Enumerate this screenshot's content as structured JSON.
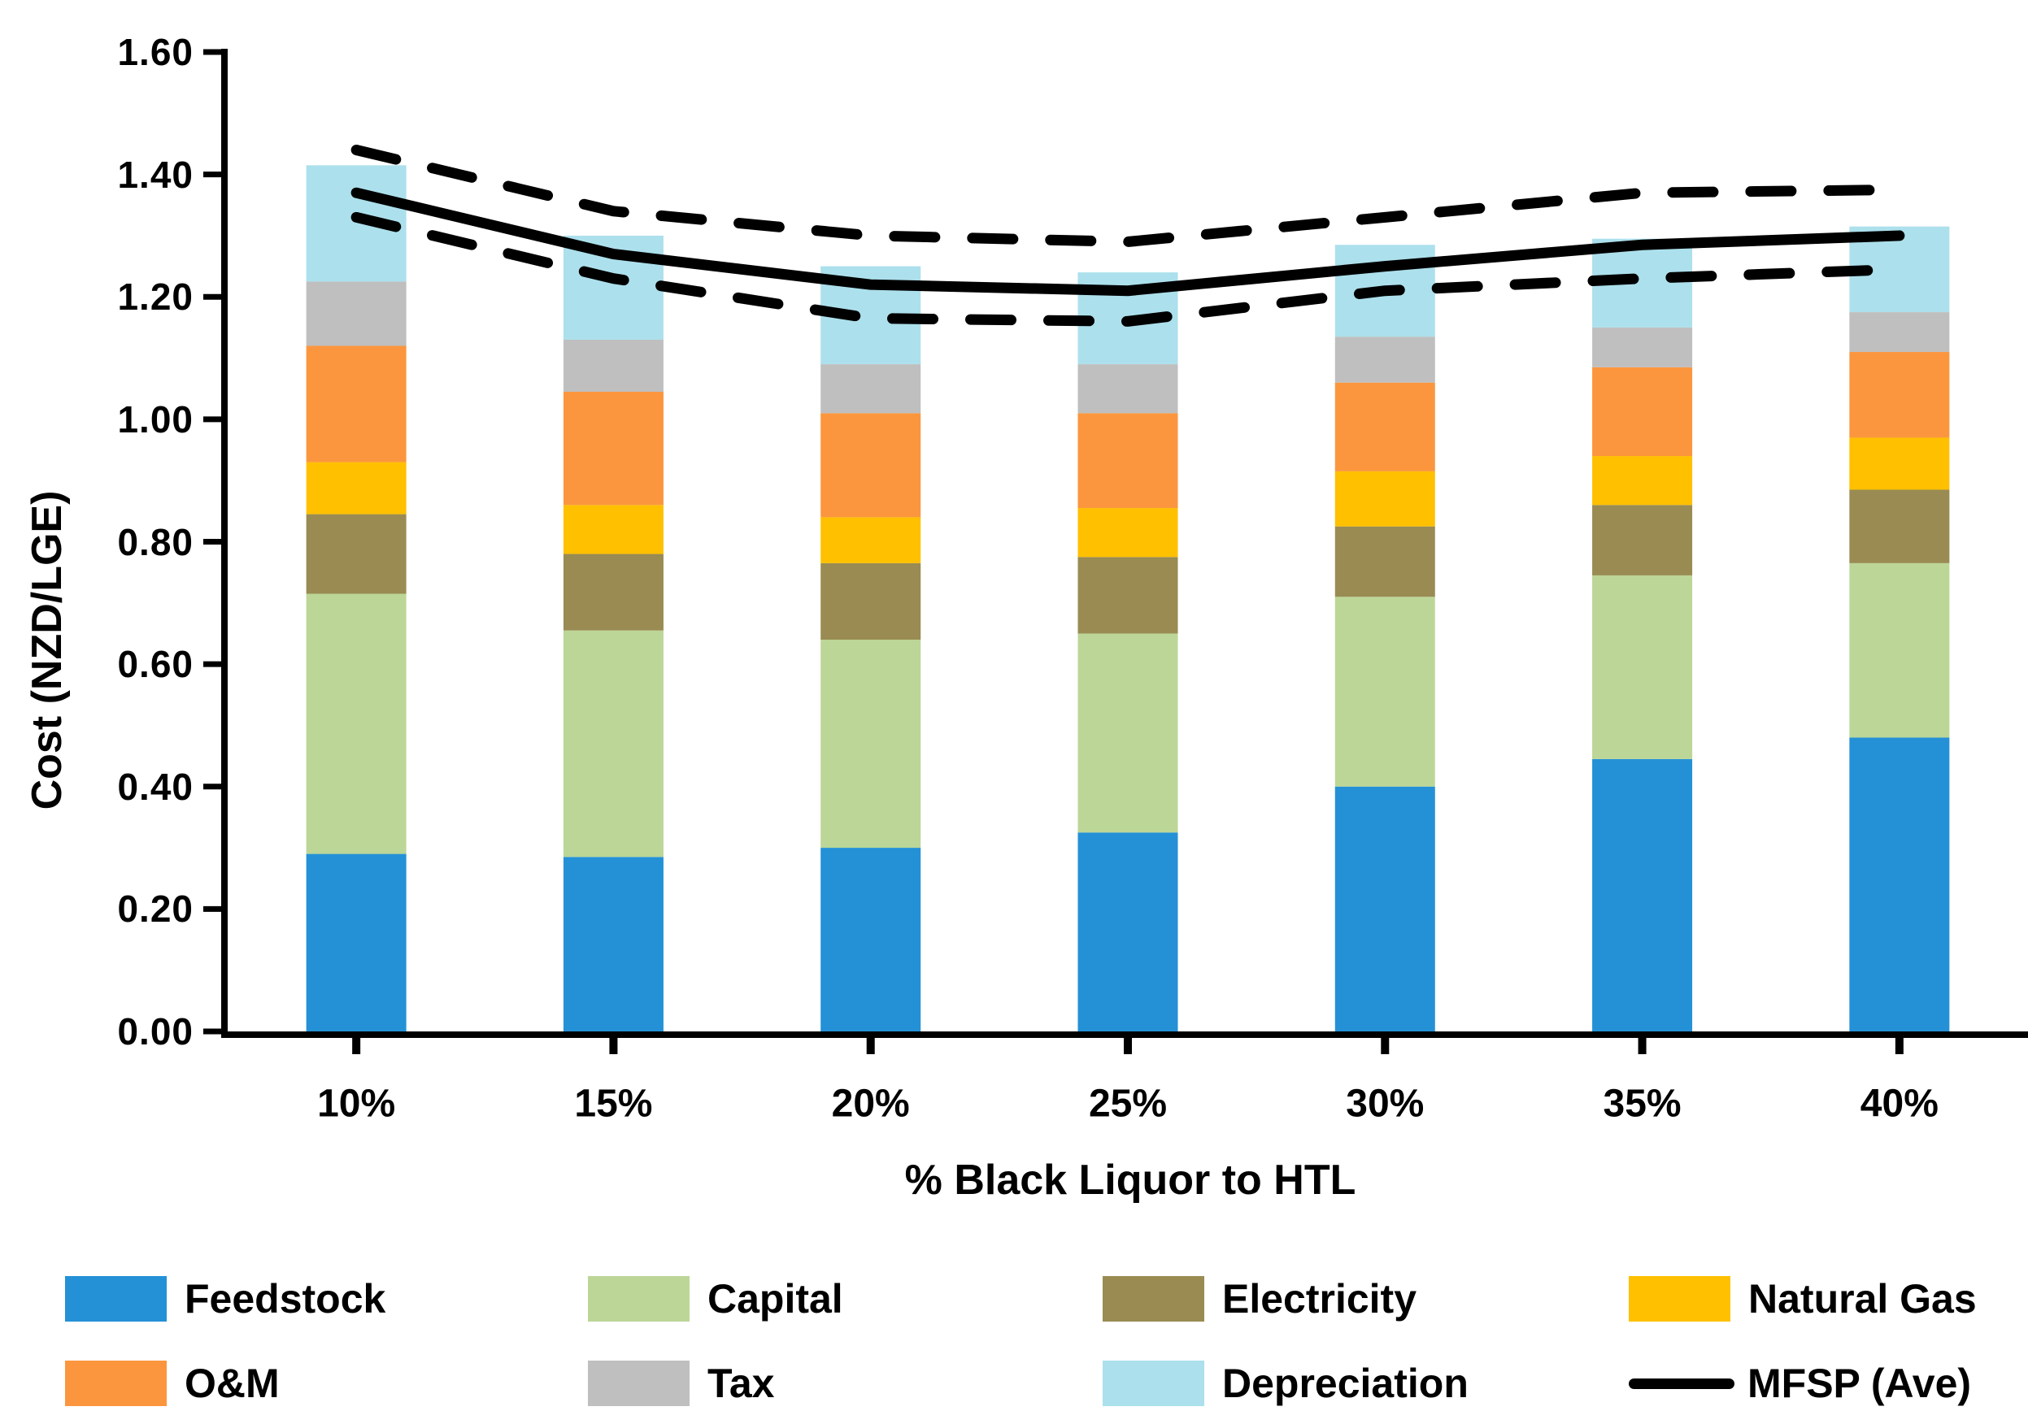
{
  "chart_data": {
    "type": "bar",
    "subtype": "stacked-bars-with-lines",
    "title": "",
    "xlabel": "% Black Liquor to HTL",
    "ylabel": "Cost (NZD/LGE)",
    "categories": [
      "10%",
      "15%",
      "20%",
      "25%",
      "30%",
      "35%",
      "40%"
    ],
    "y_axis": {
      "min": 0.0,
      "max": 1.6,
      "step": 0.2,
      "tick_labels": [
        "0.00",
        "0.20",
        "0.40",
        "0.60",
        "0.80",
        "1.00",
        "1.20",
        "1.40",
        "1.60"
      ]
    },
    "grid": "off",
    "legend_position": "bottom",
    "series": [
      {
        "name": "Feedstock",
        "color": "#2491D6",
        "values": [
          0.29,
          0.285,
          0.3,
          0.325,
          0.4,
          0.445,
          0.48
        ]
      },
      {
        "name": "Capital",
        "color": "#BCD697",
        "values": [
          0.425,
          0.37,
          0.34,
          0.325,
          0.31,
          0.3,
          0.285
        ]
      },
      {
        "name": "Electricity",
        "color": "#998B52",
        "values": [
          0.13,
          0.125,
          0.125,
          0.125,
          0.115,
          0.115,
          0.12
        ]
      },
      {
        "name": "Natural Gas",
        "color": "#FFC000",
        "values": [
          0.085,
          0.08,
          0.075,
          0.08,
          0.09,
          0.08,
          0.085
        ]
      },
      {
        "name": "O&M",
        "color": "#FB963E",
        "values": [
          0.19,
          0.185,
          0.17,
          0.155,
          0.145,
          0.145,
          0.14
        ]
      },
      {
        "name": "Tax",
        "color": "#BFBFBF",
        "values": [
          0.105,
          0.085,
          0.08,
          0.08,
          0.075,
          0.065,
          0.065
        ]
      },
      {
        "name": "Depreciation",
        "color": "#ACE0EC",
        "values": [
          0.19,
          0.17,
          0.16,
          0.15,
          0.15,
          0.145,
          0.14
        ]
      }
    ],
    "bar_totals": [
      1.415,
      1.3,
      1.25,
      1.24,
      1.285,
      1.295,
      1.315
    ],
    "lines": [
      {
        "name": "MFSP (Ave)",
        "style": "solid",
        "color": "#000000",
        "values": [
          1.37,
          1.27,
          1.22,
          1.21,
          1.25,
          1.285,
          1.3
        ]
      },
      {
        "name": "upper-bound",
        "style": "dashed",
        "color": "#000000",
        "values": [
          1.44,
          1.34,
          1.3,
          1.29,
          1.33,
          1.37,
          1.375
        ]
      },
      {
        "name": "lower-bound",
        "style": "dashed",
        "color": "#000000",
        "values": [
          1.33,
          1.23,
          1.165,
          1.16,
          1.21,
          1.23,
          1.245
        ]
      }
    ],
    "legend": [
      {
        "label": "Feedstock",
        "marker": "swatch",
        "color": "#2491D6"
      },
      {
        "label": "Capital",
        "marker": "swatch",
        "color": "#BCD697"
      },
      {
        "label": "Electricity",
        "marker": "swatch",
        "color": "#998B52"
      },
      {
        "label": "Natural Gas",
        "marker": "swatch",
        "color": "#FFC000"
      },
      {
        "label": "O&M",
        "marker": "swatch",
        "color": "#FB963E"
      },
      {
        "label": "Tax",
        "marker": "swatch",
        "color": "#BFBFBF"
      },
      {
        "label": "Depreciation",
        "marker": "swatch",
        "color": "#ACE0EC"
      },
      {
        "label": "MFSP (Ave)",
        "marker": "line",
        "color": "#000000"
      }
    ]
  }
}
